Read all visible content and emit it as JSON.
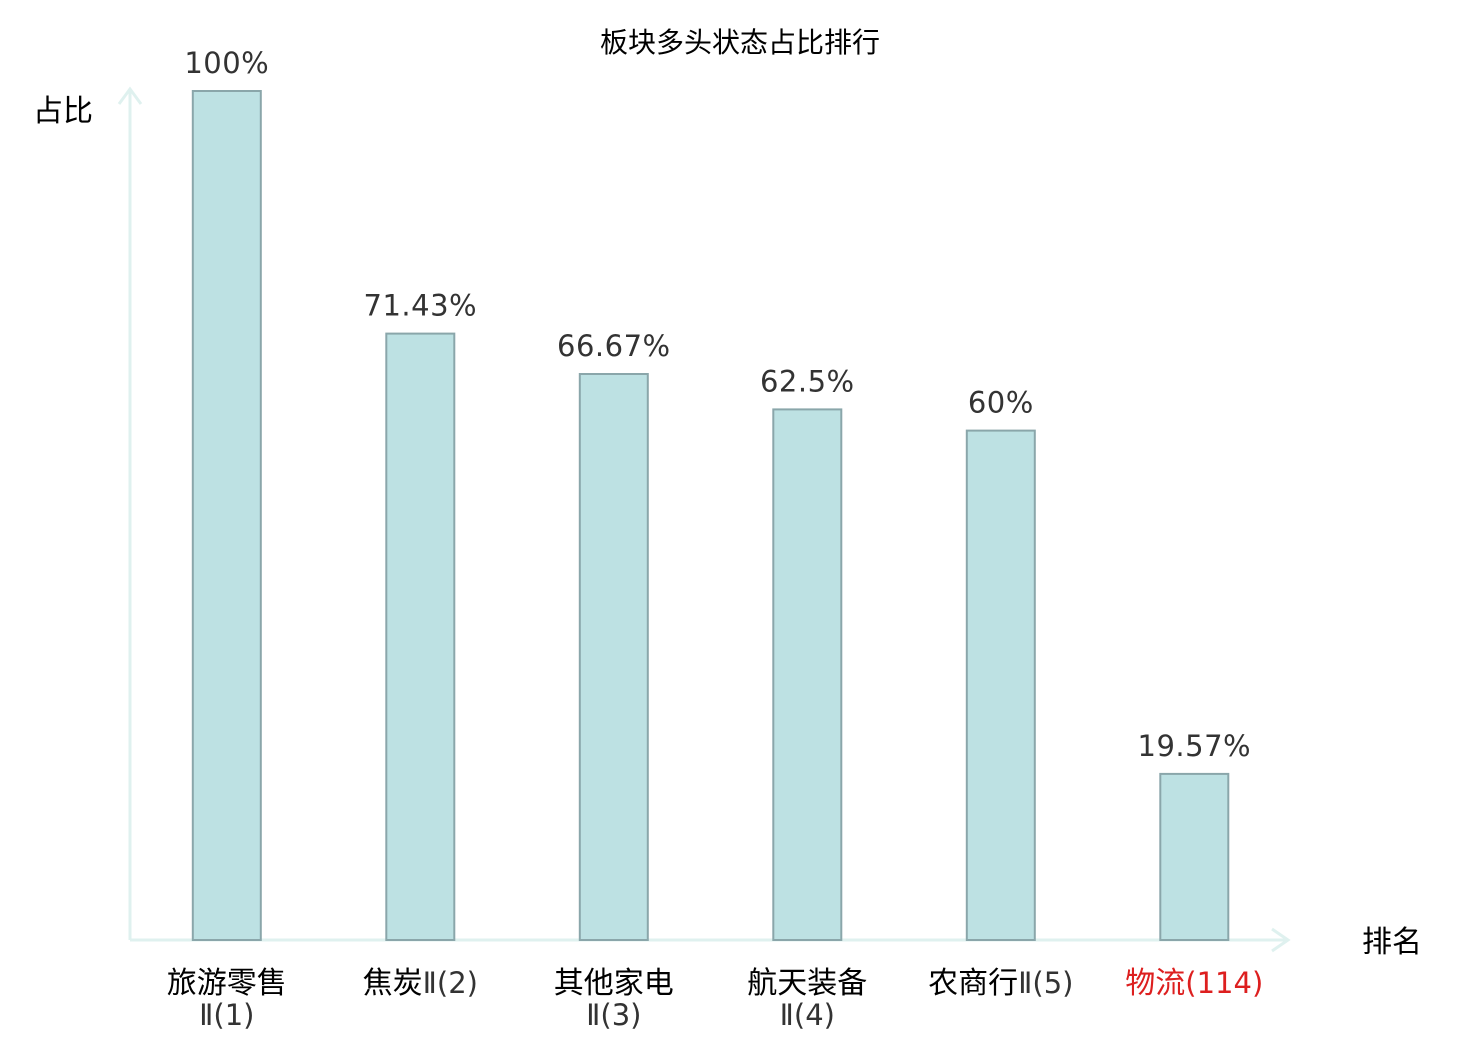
{
  "chart_data": {
    "type": "bar",
    "title": "板块多头状态占比排行",
    "ylabel": "占比",
    "xlabel": "排名",
    "ylim": [
      0,
      100
    ],
    "grid": false,
    "categories": [
      {
        "name": "旅游零售",
        "suffix": "Ⅱ(1)",
        "wrap": true,
        "highlight": false
      },
      {
        "name": "焦炭",
        "suffix": "Ⅱ(2)",
        "wrap": false,
        "highlight": false
      },
      {
        "name": "其他家电",
        "suffix": "Ⅱ(3)",
        "wrap": true,
        "highlight": false
      },
      {
        "name": "航天装备",
        "suffix": "Ⅱ(4)",
        "wrap": true,
        "highlight": false
      },
      {
        "name": "农商行",
        "suffix": "Ⅱ(5)",
        "wrap": false,
        "highlight": false
      },
      {
        "name": "物流",
        "suffix": "(114)",
        "wrap": false,
        "highlight": true
      }
    ],
    "values": [
      100,
      71.43,
      66.67,
      62.5,
      60,
      19.57
    ],
    "value_labels": [
      "100%",
      "71.43%",
      "66.67%",
      "62.5%",
      "60%",
      "19.57%"
    ],
    "colors": {
      "bar_fill": "#bde1e3",
      "bar_stroke": "#8aa6aa",
      "axis": "#dff1ef",
      "highlight_text": "#dd1f1f"
    }
  }
}
